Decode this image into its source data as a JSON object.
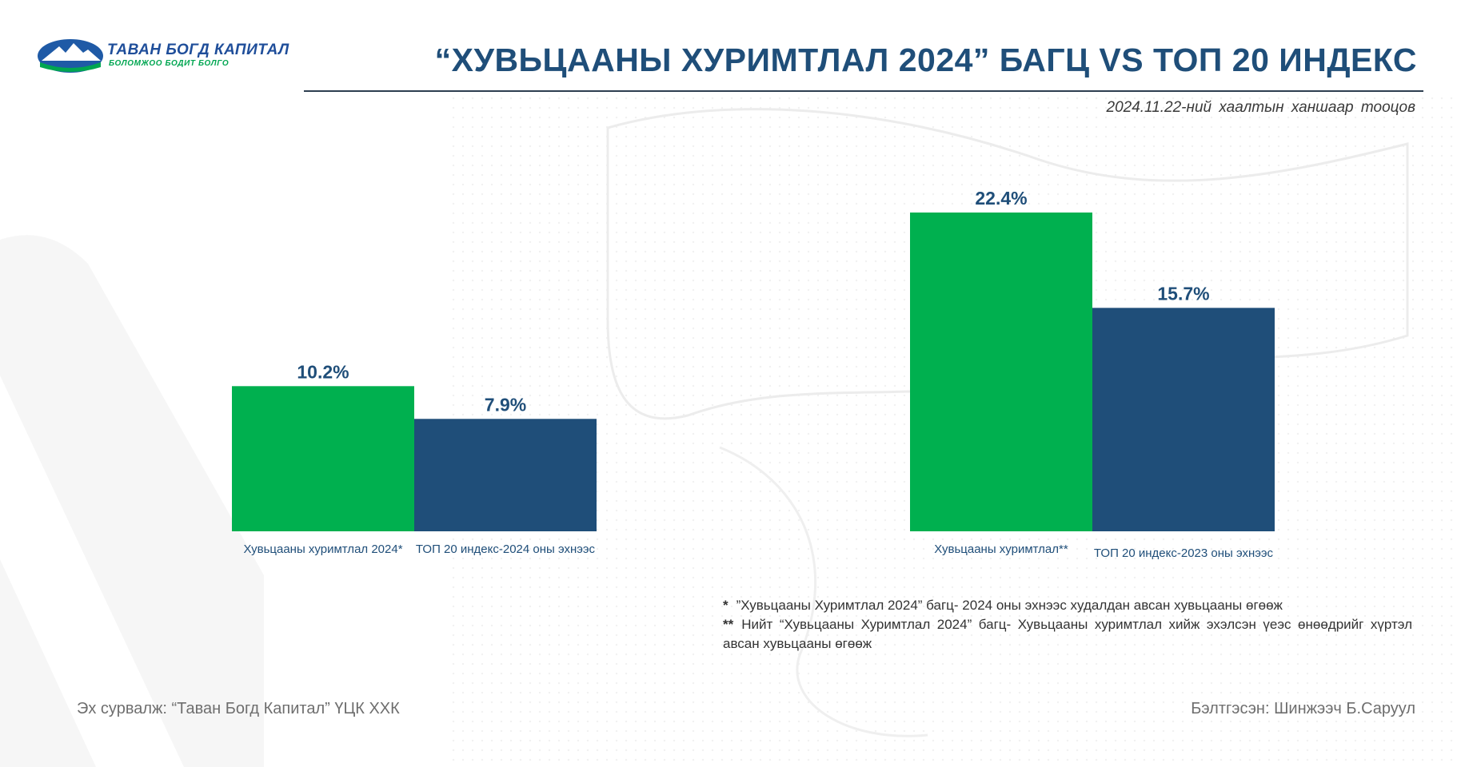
{
  "header": {
    "logo_name": "ТАВАН БОГД КАПИТАЛ",
    "logo_tagline": "БОЛОМЖОО БОДИТ БОЛГО",
    "title": "“ХУВЬЦААНЫ ХУРИМТЛАЛ 2024” БАГЦ VS ТОП 20 ИНДЕКС",
    "subtitle": "2024.11.22-ний хаалтын ханшаар тооцов"
  },
  "colors": {
    "green": "#00b04f",
    "navy": "#1f4e79",
    "title": "#1f4e79",
    "muted_text": "#6e6e6e"
  },
  "chart_data": [
    {
      "type": "bar",
      "categories": [
        "Хувьцааны хуримтлал 2024*",
        "ТОП 20 индекс-2024 оны эхнээс"
      ],
      "values": [
        10.2,
        7.9
      ],
      "data_labels": [
        "10.2%",
        "7.9%"
      ],
      "colors": [
        "#00b04f",
        "#1f4e79"
      ],
      "title": "",
      "xlabel": "",
      "ylabel": "",
      "ylim": [
        0,
        22.4
      ],
      "grid": false
    },
    {
      "type": "bar",
      "categories": [
        "Хувьцааны хуримтлал**",
        "ТОП 20 индекс-2023 оны эхнээс"
      ],
      "values": [
        22.4,
        15.7
      ],
      "data_labels": [
        "22.4%",
        "15.7%"
      ],
      "colors": [
        "#00b04f",
        "#1f4e79"
      ],
      "title": "",
      "xlabel": "",
      "ylabel": "",
      "ylim": [
        0,
        22.4
      ],
      "grid": false
    }
  ],
  "notes": [
    {
      "marker": "*",
      "text": "”Хувьцааны Хуримтлал 2024” багц- 2024 оны эхнээс худалдан авсан хувьцааны өгөөж"
    },
    {
      "marker": "**",
      "text": "Нийт “Хувьцааны Хуримтлал 2024” багц- Хувьцааны хуримтлал хийж эхэлсэн үеэс өнөөдрийг хүртэл авсан хувьцааны өгөөж"
    }
  ],
  "footer": {
    "source": "Эх сурвалж: “Таван Богд Капитал” ҮЦК ХХК",
    "prepared_by": "Бэлтгэсэн: Шинжээч Б.Саруул"
  }
}
